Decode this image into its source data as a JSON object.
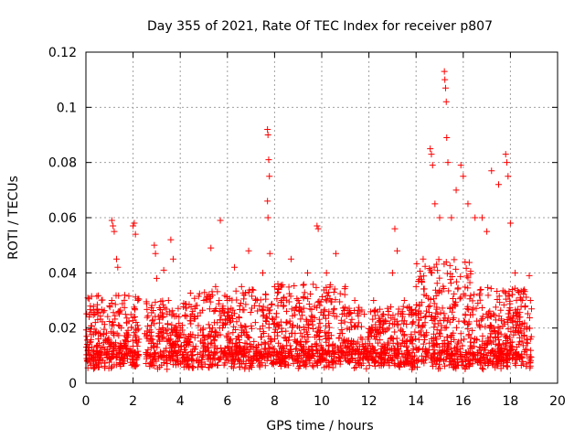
{
  "chart_data": {
    "type": "scatter",
    "title": "Day 355 of 2021, Rate Of TEC Index for receiver p807",
    "xlabel": "GPS time / hours",
    "ylabel": "ROTI / TECUs",
    "xlim": [
      0,
      20
    ],
    "ylim": [
      0,
      0.12
    ],
    "x_ticks": [
      0,
      2,
      4,
      6,
      8,
      10,
      12,
      14,
      16,
      18,
      20
    ],
    "x_tick_labels": [
      "0",
      "2",
      "4",
      "6",
      "8",
      "10",
      "12",
      "14",
      "16",
      "18",
      "20"
    ],
    "y_ticks": [
      0,
      0.02,
      0.04,
      0.06,
      0.08,
      0.1,
      0.12
    ],
    "y_tick_labels": [
      "0",
      "0.02",
      "0.04",
      "0.06",
      "0.08",
      "0.1",
      "0.12"
    ],
    "grid": true,
    "marker": "+",
    "color": "#ff0000",
    "series": [
      {
        "name": "ROTI",
        "points": [
          [
            0.2,
            0.015
          ],
          [
            0.4,
            0.022
          ],
          [
            0.6,
            0.018
          ],
          [
            0.8,
            0.012
          ],
          [
            1.0,
            0.028
          ],
          [
            1.1,
            0.059
          ],
          [
            1.15,
            0.057
          ],
          [
            1.2,
            0.055
          ],
          [
            1.3,
            0.045
          ],
          [
            1.35,
            0.042
          ],
          [
            1.5,
            0.02
          ],
          [
            1.7,
            0.015
          ],
          [
            2.0,
            0.057
          ],
          [
            2.05,
            0.058
          ],
          [
            2.1,
            0.054
          ],
          [
            2.2,
            0.03
          ],
          [
            2.5,
            0.018
          ],
          [
            2.9,
            0.05
          ],
          [
            2.95,
            0.047
          ],
          [
            3.0,
            0.038
          ],
          [
            3.3,
            0.041
          ],
          [
            3.5,
            0.03
          ],
          [
            3.6,
            0.052
          ],
          [
            3.7,
            0.045
          ],
          [
            4.0,
            0.02
          ],
          [
            4.5,
            0.025
          ],
          [
            5.0,
            0.03
          ],
          [
            5.3,
            0.049
          ],
          [
            5.5,
            0.035
          ],
          [
            5.7,
            0.059
          ],
          [
            6.0,
            0.03
          ],
          [
            6.3,
            0.042
          ],
          [
            6.6,
            0.035
          ],
          [
            6.9,
            0.048
          ],
          [
            7.2,
            0.03
          ],
          [
            7.5,
            0.04
          ],
          [
            7.7,
            0.092
          ],
          [
            7.72,
            0.09
          ],
          [
            7.75,
            0.081
          ],
          [
            7.78,
            0.075
          ],
          [
            7.7,
            0.066
          ],
          [
            7.72,
            0.06
          ],
          [
            7.8,
            0.047
          ],
          [
            8.0,
            0.035
          ],
          [
            8.3,
            0.03
          ],
          [
            8.7,
            0.045
          ],
          [
            9.0,
            0.03
          ],
          [
            9.4,
            0.04
          ],
          [
            9.8,
            0.057
          ],
          [
            9.85,
            0.056
          ],
          [
            10.2,
            0.04
          ],
          [
            10.6,
            0.047
          ],
          [
            11.0,
            0.035
          ],
          [
            11.4,
            0.03
          ],
          [
            11.8,
            0.025
          ],
          [
            12.2,
            0.03
          ],
          [
            12.6,
            0.025
          ],
          [
            13.0,
            0.04
          ],
          [
            13.1,
            0.056
          ],
          [
            13.2,
            0.048
          ],
          [
            13.5,
            0.03
          ],
          [
            14.0,
            0.035
          ],
          [
            14.3,
            0.045
          ],
          [
            14.6,
            0.085
          ],
          [
            14.65,
            0.083
          ],
          [
            14.7,
            0.079
          ],
          [
            14.8,
            0.065
          ],
          [
            15.0,
            0.06
          ],
          [
            15.2,
            0.113
          ],
          [
            15.22,
            0.11
          ],
          [
            15.25,
            0.107
          ],
          [
            15.28,
            0.102
          ],
          [
            15.3,
            0.089
          ],
          [
            15.35,
            0.08
          ],
          [
            15.5,
            0.06
          ],
          [
            15.7,
            0.07
          ],
          [
            15.9,
            0.079
          ],
          [
            16.0,
            0.075
          ],
          [
            16.2,
            0.065
          ],
          [
            16.5,
            0.06
          ],
          [
            16.8,
            0.06
          ],
          [
            17.0,
            0.055
          ],
          [
            17.2,
            0.077
          ],
          [
            17.5,
            0.072
          ],
          [
            17.8,
            0.083
          ],
          [
            17.85,
            0.08
          ],
          [
            17.9,
            0.075
          ],
          [
            18.0,
            0.058
          ],
          [
            18.2,
            0.04
          ],
          [
            18.5,
            0.03
          ],
          [
            18.8,
            0.039
          ],
          [
            18.85,
            0.03
          ]
        ]
      }
    ]
  }
}
